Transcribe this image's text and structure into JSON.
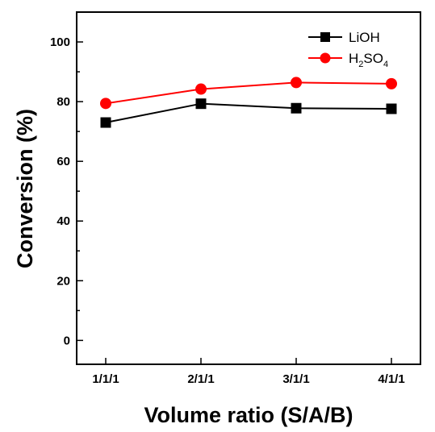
{
  "chart_data": {
    "type": "line",
    "categories": [
      "1/1/1",
      "2/1/1",
      "3/1/1",
      "4/1/1"
    ],
    "series": [
      {
        "name": "LiOH",
        "values": [
          73.0,
          79.3,
          77.8,
          77.6
        ],
        "color": "#000000",
        "marker": "square"
      },
      {
        "name": "H2SO4",
        "values": [
          79.4,
          84.2,
          86.4,
          86.0
        ],
        "color": "#ff0000",
        "marker": "circle"
      }
    ],
    "legend": {
      "entries": [
        {
          "base": "LiOH"
        },
        {
          "base": "H",
          "sub1": "2",
          "mid": "SO",
          "sub2": "4"
        }
      ],
      "position": "top-right"
    },
    "xlabel": "Volume ratio (S/A/B)",
    "ylabel": "Conversion (%)",
    "ylim": [
      -8,
      110
    ],
    "yticks": [
      0,
      20,
      40,
      60,
      80,
      100
    ],
    "grid": false
  }
}
